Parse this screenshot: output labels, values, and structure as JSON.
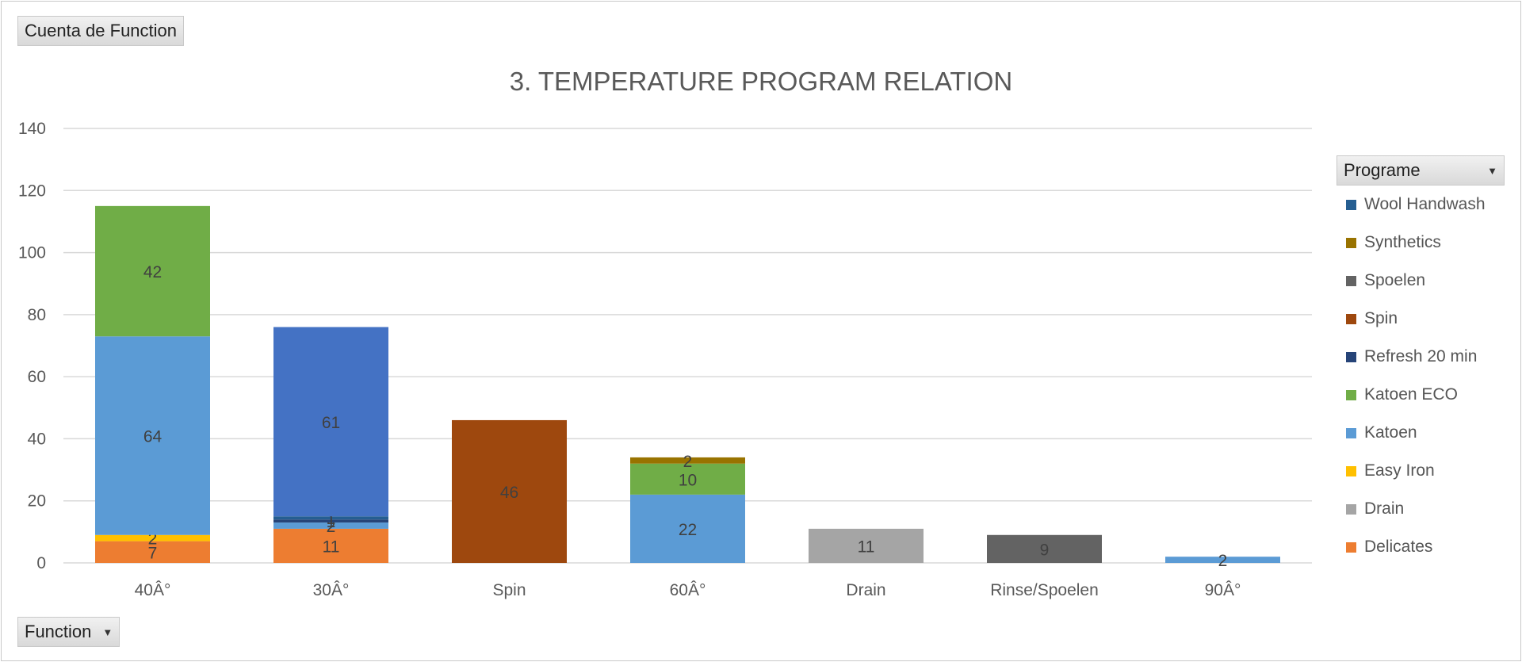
{
  "filter_buttons": {
    "values_field": "Cuenta de Function",
    "axis_field": "Function",
    "legend_field": "Programe"
  },
  "chart_data": {
    "type": "bar",
    "stacked": true,
    "title": "3. TEMPERATURE PROGRAM RELATION",
    "categories": [
      "40Â°",
      "30Â°",
      "Spin",
      "60Â°",
      "Drain",
      "Rinse/Spoelen",
      "90Â°"
    ],
    "ylim": [
      0,
      140
    ],
    "yticks": [
      0,
      20,
      40,
      60,
      80,
      100,
      120,
      140
    ],
    "grid": true,
    "legend_position": "right",
    "stack_order": [
      "Delicates",
      "Easy Iron",
      "Katoen",
      "Katoen ECO",
      "Refresh 20 min",
      "Spin",
      "Spoelen",
      "Synthetics",
      "Wool Handwash",
      "Drain",
      "Unlabeled"
    ],
    "legend_order": [
      "Wool Handwash",
      "Synthetics",
      "Spoelen",
      "Spin",
      "Refresh 20 min",
      "Katoen ECO",
      "Katoen",
      "Easy Iron",
      "Drain",
      "Delicates"
    ],
    "series": [
      {
        "name": "Delicates",
        "color": "#ED7D31",
        "values": [
          7,
          11,
          null,
          null,
          null,
          null,
          null
        ]
      },
      {
        "name": "Easy Iron",
        "color": "#FFC000",
        "values": [
          2,
          null,
          null,
          null,
          null,
          null,
          null
        ]
      },
      {
        "name": "Katoen",
        "color": "#5B9BD5",
        "values": [
          64,
          2,
          null,
          22,
          null,
          null,
          2
        ]
      },
      {
        "name": "Katoen ECO",
        "color": "#70AD47",
        "values": [
          42,
          null,
          null,
          10,
          null,
          null,
          null
        ]
      },
      {
        "name": "Refresh 20 min",
        "color": "#264478",
        "values": [
          null,
          1,
          null,
          null,
          null,
          null,
          null
        ]
      },
      {
        "name": "Spin",
        "color": "#9E480E",
        "values": [
          null,
          null,
          46,
          null,
          null,
          null,
          null
        ]
      },
      {
        "name": "Spoelen",
        "color": "#636363",
        "values": [
          null,
          null,
          null,
          null,
          null,
          9,
          null
        ]
      },
      {
        "name": "Synthetics",
        "color": "#997300",
        "values": [
          null,
          null,
          null,
          2,
          null,
          null,
          null
        ]
      },
      {
        "name": "Wool Handwash",
        "color": "#255E91",
        "values": [
          null,
          1,
          null,
          null,
          null,
          null,
          null
        ]
      },
      {
        "name": "Drain",
        "color": "#A5A5A5",
        "values": [
          null,
          null,
          null,
          null,
          11,
          null,
          null
        ]
      },
      {
        "name": "",
        "color": "#4472C4",
        "values": [
          null,
          61,
          null,
          null,
          null,
          null,
          null
        ]
      }
    ]
  }
}
